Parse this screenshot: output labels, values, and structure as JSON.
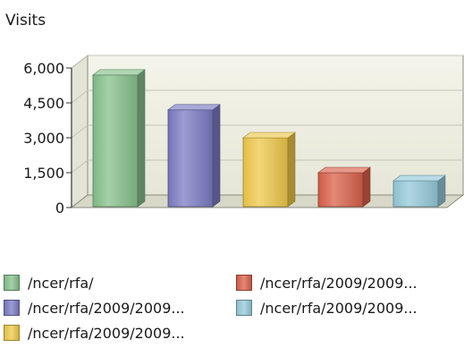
{
  "chart_data": {
    "type": "bar",
    "title": "Visits",
    "xlabel": "",
    "ylabel": "",
    "ylim": [
      0,
      6000
    ],
    "yticks": [
      0,
      1500,
      3000,
      4500,
      6000
    ],
    "ytick_labels": [
      "0",
      "1,500",
      "3,000",
      "4,500",
      "6,000"
    ],
    "grid": true,
    "three_d": true,
    "legend_position": "bottom",
    "categories": [
      "/ncer/rfa/",
      "/ncer/rfa/2009/2009...",
      "/ncer/rfa/2009/2009...",
      "/ncer/rfa/2009/2009...",
      "/ncer/rfa/2009/2009..."
    ],
    "values": [
      5700,
      4200,
      3000,
      1500,
      1150
    ],
    "colors": [
      "#86c08c",
      "#7b7bc4",
      "#eec84a",
      "#d9604a",
      "#94c9d8"
    ]
  }
}
